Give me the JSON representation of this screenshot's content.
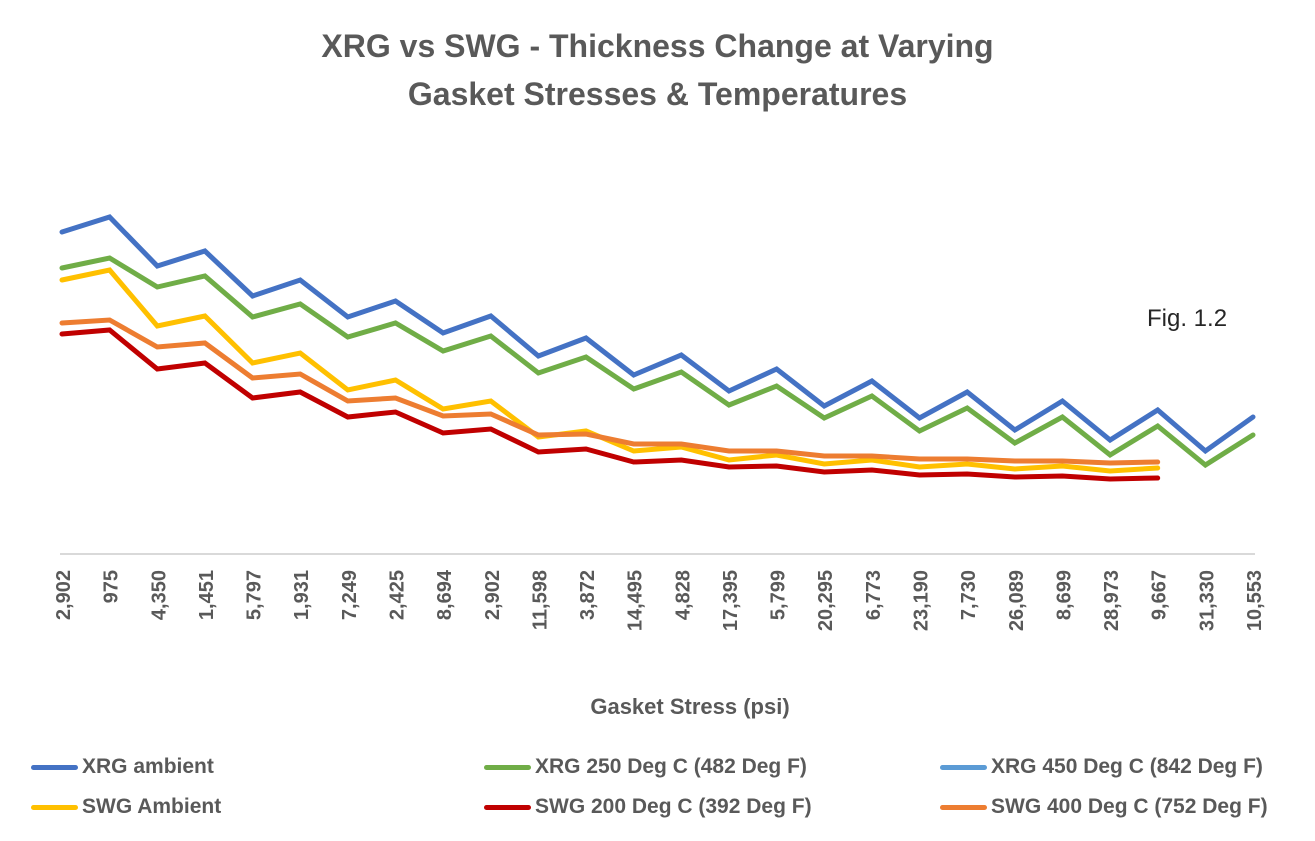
{
  "chart_data": {
    "type": "line",
    "title": "XRG vs SWG - Thickness Change at Varying Gasket Stresses & Temperatures",
    "title_lines": [
      "XRG vs SWG - Thickness Change at Varying",
      "Gasket Stresses & Temperatures"
    ],
    "annotation": "Fig. 1.2",
    "xlabel": "Gasket Stress (psi)",
    "ylabel": "",
    "y_axis_labels_shown": false,
    "ylim": [
      0,
      3.6
    ],
    "grid": false,
    "legend_position": "bottom",
    "categories": [
      "2,902",
      "975",
      "4,350",
      "1,451",
      "5,797",
      "1,931",
      "7,249",
      "2,425",
      "8,694",
      "2,902",
      "11,598",
      "3,872",
      "14,495",
      "4,828",
      "17,395",
      "5,799",
      "20,295",
      "6,773",
      "23,190",
      "7,730",
      "26,089",
      "8,699",
      "28,973",
      "9,667",
      "31,330",
      "10,553"
    ],
    "series": [
      {
        "name": "XRG ambient",
        "color": "#4472C4",
        "values": [
          3.22,
          3.37,
          2.88,
          3.03,
          2.58,
          2.74,
          2.37,
          2.53,
          2.21,
          2.38,
          1.98,
          2.16,
          1.79,
          1.99,
          1.63,
          1.85,
          1.48,
          1.73,
          1.36,
          1.62,
          1.24,
          1.53,
          1.14,
          1.44,
          1.03,
          1.37
        ]
      },
      {
        "name": "XRG 250 Deg C (482 Deg F)",
        "color": "#70AD47",
        "values": [
          2.86,
          2.96,
          2.67,
          2.78,
          2.37,
          2.5,
          2.17,
          2.31,
          2.03,
          2.18,
          1.81,
          1.97,
          1.65,
          1.82,
          1.49,
          1.68,
          1.36,
          1.58,
          1.23,
          1.46,
          1.11,
          1.37,
          0.99,
          1.28,
          0.89,
          1.19
        ]
      },
      {
        "name": "XRG 450 Deg C (842 Deg F)",
        "color": "#5B9BD5",
        "values": []
      },
      {
        "name": "SWG Ambient",
        "color": "#FFC000",
        "values": [
          2.74,
          2.84,
          2.28,
          2.38,
          1.91,
          2.01,
          1.64,
          1.74,
          1.45,
          1.53,
          1.17,
          1.23,
          1.03,
          1.07,
          0.94,
          0.99,
          0.9,
          0.94,
          0.87,
          0.9,
          0.85,
          0.88,
          0.83,
          0.86,
          null,
          null
        ]
      },
      {
        "name": "SWG 200 Deg C (392 Deg F)",
        "color": "#C00000",
        "values": [
          2.2,
          2.24,
          1.85,
          1.91,
          1.56,
          1.62,
          1.37,
          1.42,
          1.21,
          1.25,
          1.02,
          1.05,
          0.92,
          0.94,
          0.87,
          0.88,
          0.82,
          0.84,
          0.79,
          0.8,
          0.77,
          0.78,
          0.75,
          0.76,
          null,
          null
        ]
      },
      {
        "name": "SWG 400 Deg C (752 Deg F)",
        "color": "#ED7D31",
        "values": [
          2.31,
          2.34,
          2.07,
          2.11,
          1.76,
          1.8,
          1.53,
          1.56,
          1.38,
          1.4,
          1.19,
          1.2,
          1.1,
          1.1,
          1.03,
          1.03,
          0.98,
          0.98,
          0.95,
          0.95,
          0.93,
          0.93,
          0.91,
          0.92,
          null,
          null
        ]
      }
    ]
  }
}
